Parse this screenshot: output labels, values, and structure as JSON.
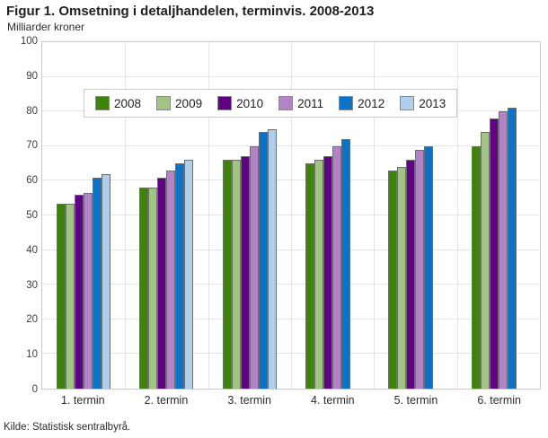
{
  "header": {
    "title": "Figur 1. Omsetning i detaljhandelen, terminvis. 2008-2013",
    "subtitle": "Milliarder kroner"
  },
  "footer": {
    "source": "Kilde: Statistisk sentralbyrå."
  },
  "colors": {
    "grid": "#e4e4e4",
    "plot_border": "#c9c9c9",
    "bar_stroke": "#6d6e70",
    "legend_border": "#cccccc"
  },
  "chart_data": {
    "type": "bar",
    "title": "Figur 1. Omsetning i detaljhandelen, terminvis. 2008-2013",
    "ylabel": "Milliarder kroner",
    "xlabel": "",
    "ylim": [
      0,
      100
    ],
    "ytick_step": 10,
    "yticks": [
      0,
      10,
      20,
      30,
      40,
      50,
      60,
      70,
      80,
      90,
      100
    ],
    "grid": true,
    "legend_position": "top-left",
    "categories": [
      "1. termin",
      "2. termin",
      "3. termin",
      "4. termin",
      "5. termin",
      "6. termin"
    ],
    "series": [
      {
        "name": "2008",
        "color": "#3e8408",
        "values": [
          53.5,
          58,
          66,
          65,
          63,
          70
        ]
      },
      {
        "name": "2009",
        "color": "#a2c482",
        "values": [
          53.5,
          58,
          66,
          66,
          64,
          74
        ]
      },
      {
        "name": "2010",
        "color": "#5f0382",
        "values": [
          56,
          61,
          67,
          67,
          66,
          78
        ]
      },
      {
        "name": "2011",
        "color": "#b283c9",
        "values": [
          56.5,
          63,
          70,
          70,
          69,
          80
        ]
      },
      {
        "name": "2012",
        "color": "#0b73c7",
        "values": [
          61,
          65,
          74,
          72,
          70,
          81
        ]
      },
      {
        "name": "2013",
        "color": "#aecfec",
        "values": [
          62,
          66,
          75,
          null,
          null,
          null
        ]
      }
    ]
  }
}
